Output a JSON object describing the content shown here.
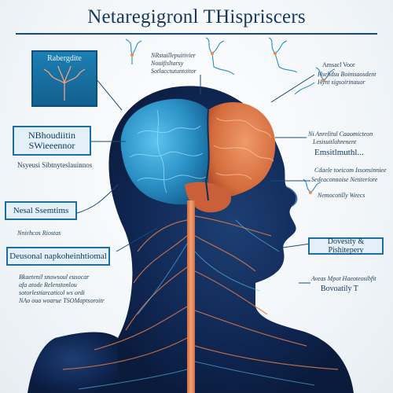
{
  "title": "Netaregigronl THispriscers",
  "boxes": {
    "top_left": "Rabergdite",
    "mid_left_line1": "NBhoudiitin",
    "mid_left_line2": "SWieeennor",
    "neural_left": "Nesal Ssemtims",
    "bottom_left": "Deusonal napkoheinhtiomal",
    "right_mid": "Emsitlmuthl...",
    "bottom_right": "Dovesity & Pishitepery"
  },
  "notes": {
    "mid_left_sub": "Nsyeusi Sibtnyteslauinnos",
    "top_center_1": "NRstaillepuitivier",
    "top_center_2": "Nouifisltarsy",
    "top_center_3": "Sotlacctutuntoitor",
    "top_right_1": "Amsacl Voor",
    "top_right_2": "Hsehdsu Boimsaosdent",
    "top_right_3": "Hynt sigsoirinauor",
    "right_mid_1": "Ni Anrelitul Caaomicteon",
    "right_mid_2": "Lesisuitlahrenent",
    "right_low_1": "Cdaele toeicom Issonsinniee",
    "right_low_2": "Sedeaconnoise Netiteriore",
    "right_low_3": "Nemocotilly Weecs",
    "left_mini": "Nnivhcos Riostas",
    "bottom_left_1": "Bkaetenil snowsoul eusocar",
    "bottom_left_2": "afa atode Relenstonlou",
    "bottom_left_3": "sotorlestiarcaticol ws ordi",
    "bottom_left_4": "NAo oua woarue TSOMaptsoroitr",
    "bottom_right_1": "Aveas Mpot Haeoteosibfit",
    "bottom_right_2": "Bovoatily T"
  },
  "colors": {
    "accent": "#1c7fb3",
    "brain_blue": "#2a8fc4",
    "brain_orange": "#d9774a",
    "head_dark": "#0d1f3f"
  }
}
